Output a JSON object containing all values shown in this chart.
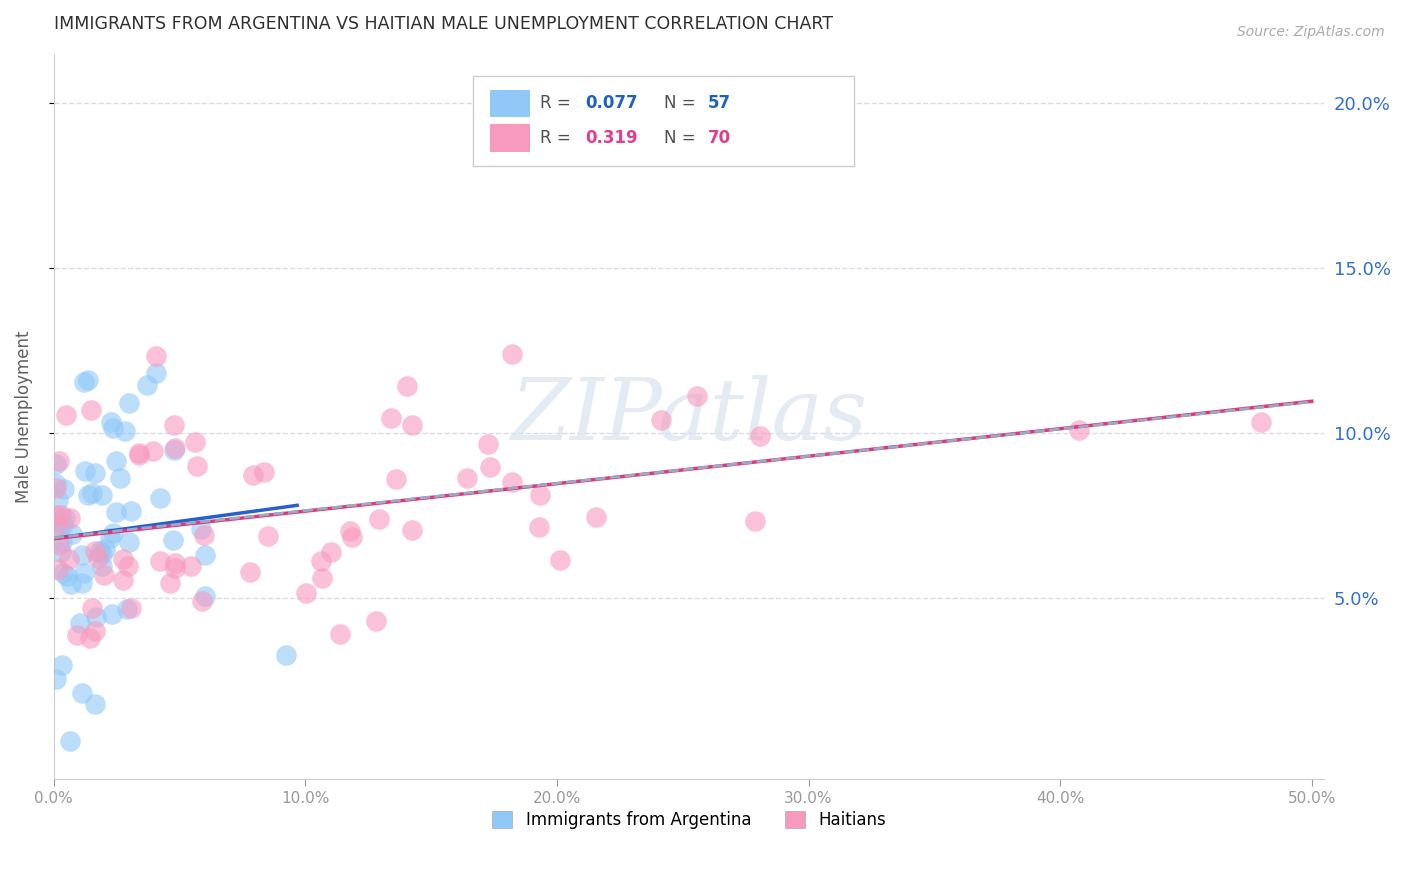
{
  "title": "IMMIGRANTS FROM ARGENTINA VS HAITIAN MALE UNEMPLOYMENT CORRELATION CHART",
  "source": "Source: ZipAtlas.com",
  "ylabel": "Male Unemployment",
  "xlim": [
    0,
    0.505
  ],
  "ylim": [
    -0.005,
    0.215
  ],
  "xticks": [
    0.0,
    0.1,
    0.2,
    0.3,
    0.4,
    0.5
  ],
  "xtick_labels": [
    "0.0%",
    "10.0%",
    "20.0%",
    "30.0%",
    "40.0%",
    "50.0%"
  ],
  "yticks": [
    0.05,
    0.1,
    0.15,
    0.2
  ],
  "ytick_labels": [
    "5.0%",
    "10.0%",
    "15.0%",
    "20.0%"
  ],
  "argentina_color": "#90c8f8",
  "haitian_color": "#f899be",
  "argentina_line_color": "#2860c8",
  "haitian_line_color": "#e03878",
  "dash_line_color": "#99aac8",
  "watermark": "ZIPatlas",
  "background_color": "#ffffff",
  "grid_color": "#d8dce8",
  "title_color": "#303030",
  "axis_label_color": "#707070",
  "right_tick_color": "#3070d0",
  "seed": 12345,
  "legend_R_arg": "0.077",
  "legend_N_arg": "57",
  "legend_R_hai": "0.319",
  "legend_N_hai": "70",
  "legend_label_arg": "Immigrants from Argentina",
  "legend_label_hai": "Haitians"
}
